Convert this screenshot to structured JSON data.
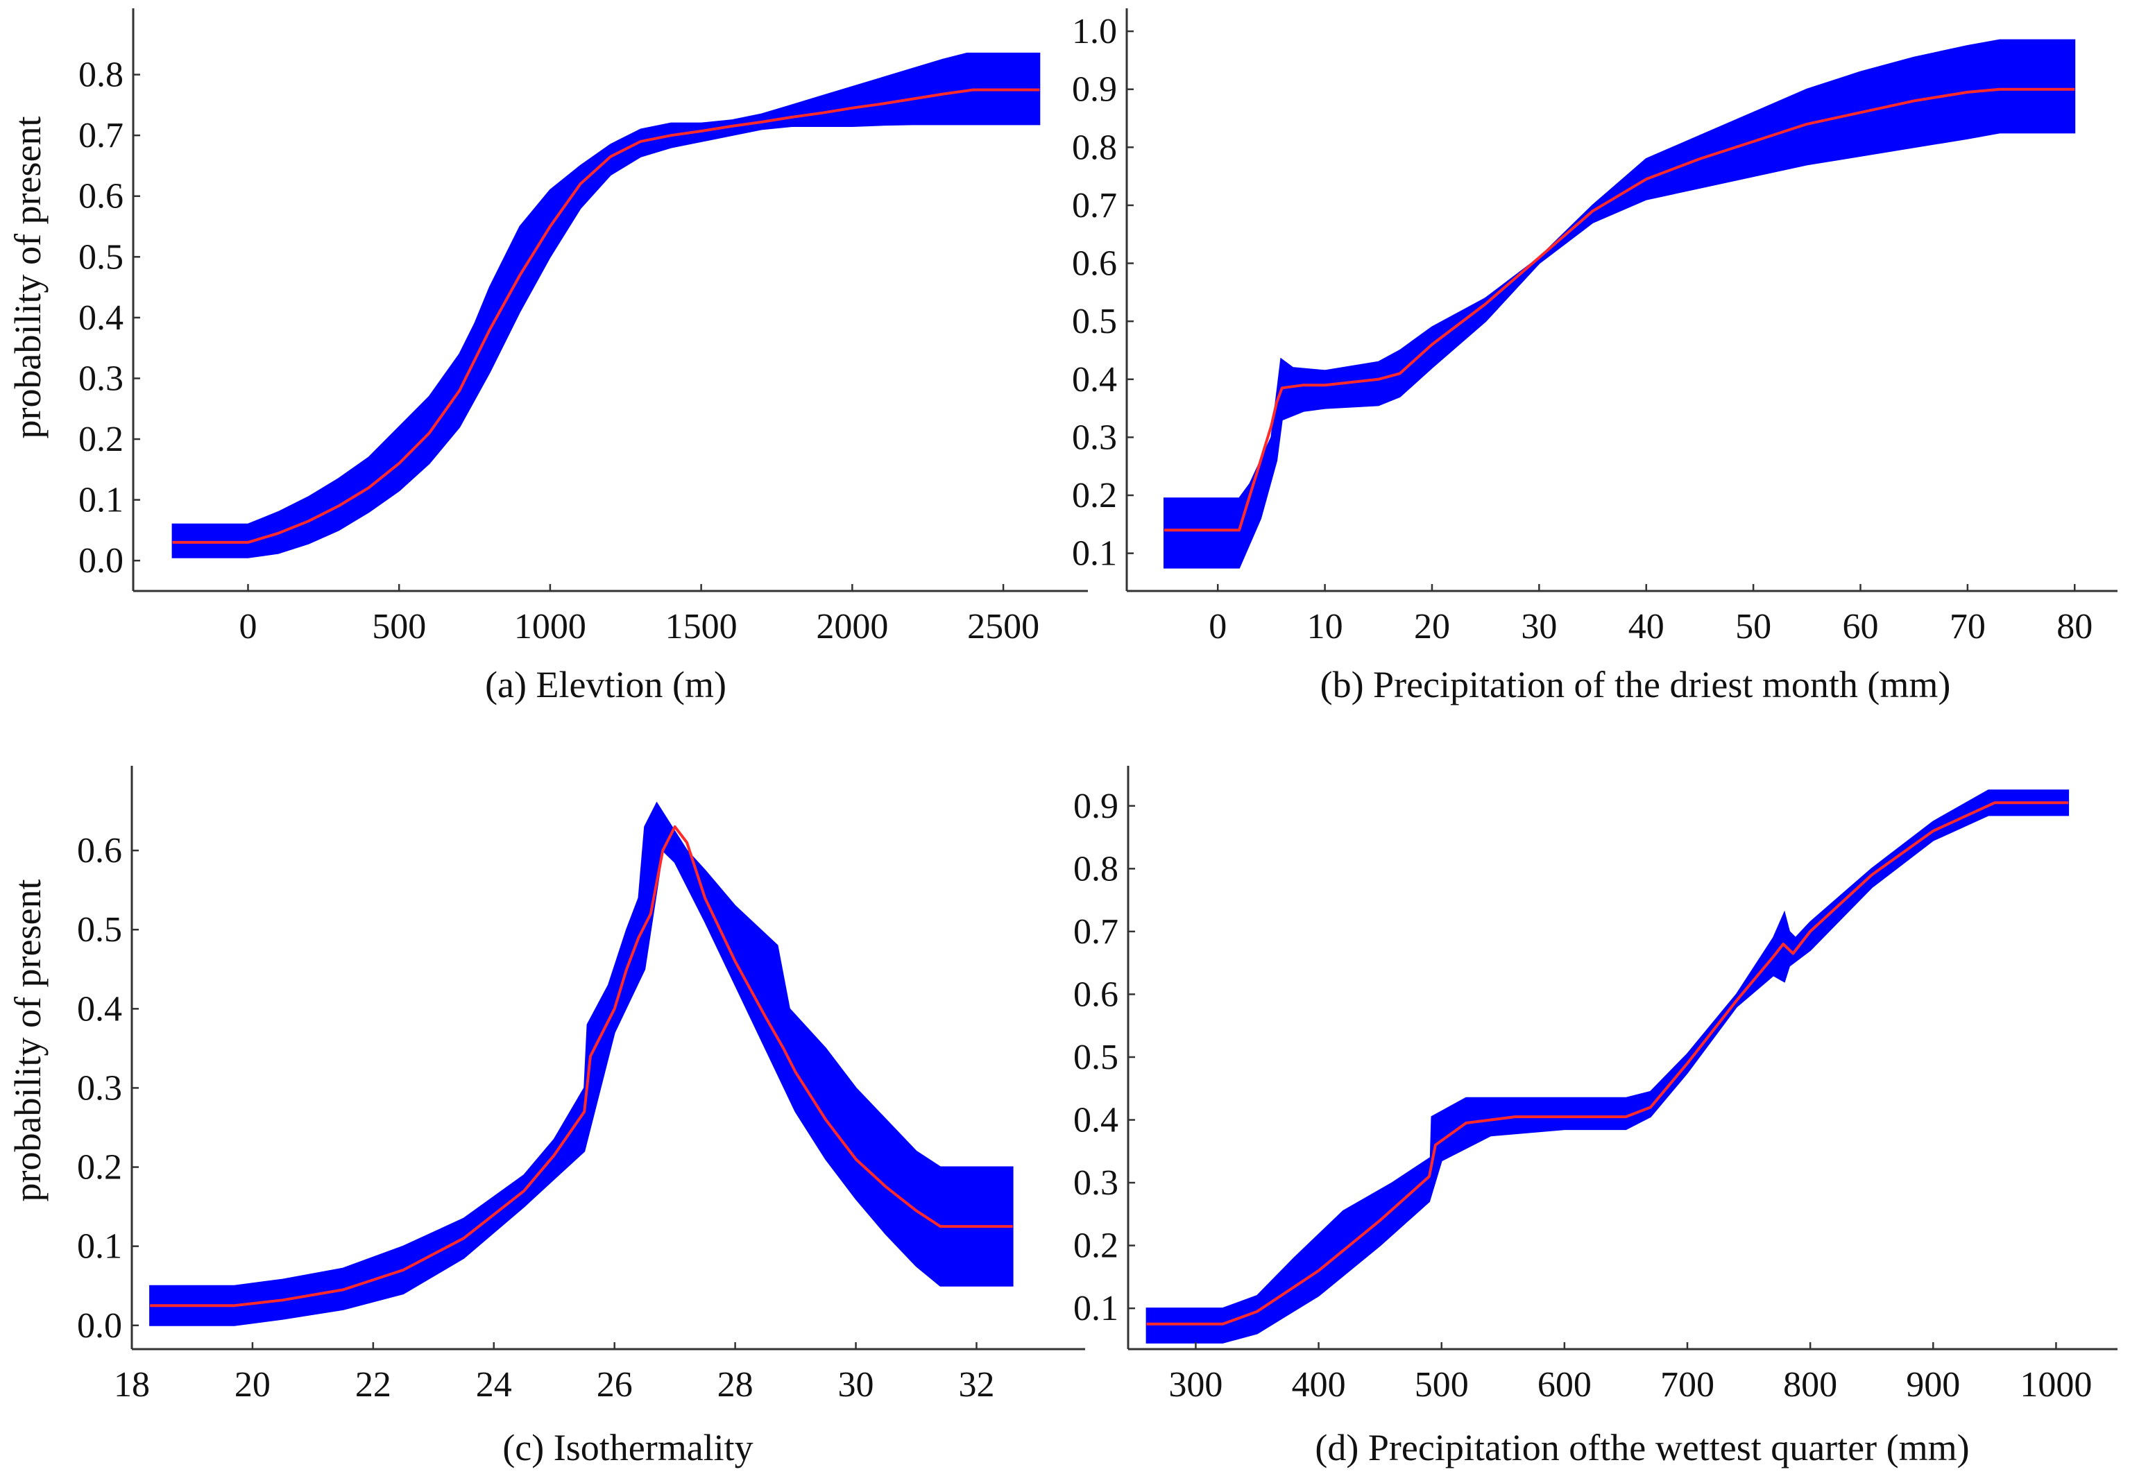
{
  "colors": {
    "band": "#0000ff",
    "line": "#ff2a2a",
    "axis": "#333333",
    "text": "#111111"
  },
  "chart_data": [
    {
      "type": "line",
      "panel": "a",
      "xlabel": "(a) Elevtion (m)",
      "ylabel": "probability of present",
      "xlim": [
        -380,
        2780
      ],
      "ylim": [
        -0.05,
        0.9
      ],
      "xticks": [
        0,
        500,
        1000,
        1500,
        2000,
        2500
      ],
      "yticks": [
        0.0,
        0.1,
        0.2,
        0.3,
        0.4,
        0.5,
        0.6,
        0.7,
        0.8
      ],
      "yfmt": 1,
      "series": [
        {
          "name": "mean response",
          "x": [
            -250,
            -100,
            0,
            100,
            200,
            300,
            400,
            500,
            600,
            700,
            800,
            900,
            1000,
            1100,
            1200,
            1300,
            1400,
            1500,
            1600,
            1700,
            1800,
            1900,
            2000,
            2100,
            2200,
            2300,
            2400,
            2620
          ],
          "y": [
            0.03,
            0.03,
            0.03,
            0.045,
            0.065,
            0.09,
            0.12,
            0.16,
            0.21,
            0.28,
            0.38,
            0.47,
            0.55,
            0.62,
            0.665,
            0.69,
            0.7,
            0.707,
            0.715,
            0.722,
            0.73,
            0.737,
            0.745,
            0.752,
            0.76,
            0.768,
            0.775,
            0.775
          ]
        },
        {
          "name": "band upper",
          "x": [
            -250,
            -100,
            0,
            100,
            200,
            300,
            400,
            500,
            600,
            700,
            750,
            800,
            900,
            1000,
            1100,
            1200,
            1300,
            1400,
            1500,
            1600,
            1700,
            1800,
            1900,
            2000,
            2100,
            2200,
            2300,
            2380,
            2620
          ],
          "y": [
            0.06,
            0.06,
            0.06,
            0.08,
            0.105,
            0.135,
            0.17,
            0.22,
            0.27,
            0.34,
            0.39,
            0.45,
            0.55,
            0.61,
            0.65,
            0.685,
            0.71,
            0.72,
            0.72,
            0.725,
            0.735,
            0.75,
            0.765,
            0.78,
            0.795,
            0.81,
            0.825,
            0.835,
            0.835
          ]
        },
        {
          "name": "band lower",
          "x": [
            -250,
            -100,
            0,
            100,
            200,
            300,
            400,
            500,
            600,
            700,
            800,
            900,
            1000,
            1100,
            1200,
            1300,
            1400,
            1500,
            1600,
            1700,
            1800,
            1900,
            2000,
            2100,
            2200,
            2300,
            2380,
            2620
          ],
          "y": [
            0.005,
            0.005,
            0.005,
            0.012,
            0.028,
            0.05,
            0.08,
            0.115,
            0.16,
            0.22,
            0.31,
            0.41,
            0.5,
            0.58,
            0.635,
            0.665,
            0.68,
            0.69,
            0.7,
            0.71,
            0.715,
            0.715,
            0.715,
            0.717,
            0.718,
            0.718,
            0.718,
            0.718
          ]
        }
      ]
    },
    {
      "type": "line",
      "panel": "b",
      "xlabel": "(b) Precipitation of the driest month (mm)",
      "ylabel": "",
      "xlim": [
        -8.5,
        84
      ],
      "ylim": [
        0.035,
        1.03
      ],
      "xticks": [
        0,
        10,
        20,
        30,
        40,
        50,
        60,
        70,
        80
      ],
      "yticks": [
        0.1,
        0.2,
        0.3,
        0.4,
        0.5,
        0.6,
        0.7,
        0.8,
        0.9,
        1.0
      ],
      "yfmt": 1,
      "series": [
        {
          "name": "mean response",
          "x": [
            -5,
            0,
            2,
            3,
            4,
            5,
            5.5,
            6,
            8,
            10,
            15,
            17,
            20,
            25,
            30,
            35,
            40,
            45,
            50,
            55,
            60,
            65,
            70,
            73,
            80
          ],
          "y": [
            0.14,
            0.14,
            0.14,
            0.2,
            0.26,
            0.32,
            0.36,
            0.385,
            0.39,
            0.39,
            0.4,
            0.41,
            0.46,
            0.53,
            0.61,
            0.69,
            0.745,
            0.78,
            0.81,
            0.84,
            0.86,
            0.88,
            0.895,
            0.9,
            0.9
          ]
        },
        {
          "name": "band upper",
          "x": [
            -5,
            2,
            3,
            5,
            5.6,
            5.9,
            7,
            10,
            15,
            17,
            20,
            25,
            30,
            35,
            40,
            45,
            50,
            55,
            60,
            65,
            70,
            73,
            80
          ],
          "y": [
            0.195,
            0.195,
            0.22,
            0.3,
            0.39,
            0.435,
            0.42,
            0.415,
            0.43,
            0.45,
            0.49,
            0.54,
            0.61,
            0.7,
            0.78,
            0.82,
            0.86,
            0.9,
            0.93,
            0.955,
            0.975,
            0.985,
            0.985
          ]
        },
        {
          "name": "band lower",
          "x": [
            -5,
            2,
            4,
            5.5,
            6,
            8,
            10,
            15,
            17,
            20,
            25,
            30,
            35,
            40,
            45,
            50,
            55,
            60,
            65,
            70,
            73,
            80
          ],
          "y": [
            0.075,
            0.075,
            0.16,
            0.26,
            0.33,
            0.345,
            0.35,
            0.355,
            0.37,
            0.42,
            0.5,
            0.6,
            0.67,
            0.71,
            0.73,
            0.75,
            0.77,
            0.785,
            0.8,
            0.815,
            0.825,
            0.825
          ]
        }
      ]
    },
    {
      "type": "line",
      "panel": "c",
      "xlabel": "(c) Isothermality",
      "ylabel": "probability of present",
      "xlim": [
        18.0,
        33.8
      ],
      "ylim": [
        -0.03,
        0.7
      ],
      "xticks": [
        18,
        20,
        22,
        24,
        26,
        28,
        30,
        32
      ],
      "yticks": [
        0.0,
        0.1,
        0.2,
        0.3,
        0.4,
        0.5,
        0.6
      ],
      "yfmt": 1,
      "series": [
        {
          "name": "mean response",
          "x": [
            18.3,
            19.0,
            19.7,
            20.5,
            21.5,
            22.5,
            23.5,
            24.5,
            25.0,
            25.5,
            25.6,
            26.0,
            26.2,
            26.4,
            26.6,
            26.8,
            27.0,
            27.2,
            27.5,
            28.0,
            28.5,
            28.8,
            29.0,
            29.5,
            30.0,
            30.5,
            31.0,
            31.4,
            32.6
          ],
          "y": [
            0.025,
            0.025,
            0.025,
            0.032,
            0.045,
            0.07,
            0.11,
            0.17,
            0.215,
            0.27,
            0.34,
            0.4,
            0.45,
            0.49,
            0.52,
            0.6,
            0.63,
            0.61,
            0.54,
            0.46,
            0.39,
            0.35,
            0.32,
            0.26,
            0.21,
            0.175,
            0.145,
            0.125,
            0.125
          ]
        },
        {
          "name": "band upper",
          "x": [
            18.3,
            19.7,
            20.5,
            21.5,
            22.5,
            23.5,
            24.5,
            25.0,
            25.5,
            25.55,
            25.9,
            26.2,
            26.4,
            26.5,
            26.7,
            27.2,
            27.5,
            28.0,
            28.7,
            28.9,
            29.5,
            30.0,
            30.5,
            31.0,
            31.4,
            32.6
          ],
          "y": [
            0.05,
            0.05,
            0.058,
            0.072,
            0.1,
            0.135,
            0.19,
            0.235,
            0.3,
            0.38,
            0.43,
            0.5,
            0.54,
            0.63,
            0.66,
            0.6,
            0.575,
            0.53,
            0.48,
            0.4,
            0.35,
            0.3,
            0.26,
            0.22,
            0.2,
            0.2
          ]
        },
        {
          "name": "band lower",
          "x": [
            18.3,
            19.7,
            20.5,
            21.5,
            22.5,
            23.5,
            24.5,
            25.0,
            25.5,
            26.0,
            26.5,
            26.8,
            27.0,
            27.5,
            28.0,
            28.5,
            29.0,
            29.5,
            30.0,
            30.5,
            31.0,
            31.4,
            32.6
          ],
          "y": [
            0.0,
            0.0,
            0.008,
            0.02,
            0.04,
            0.085,
            0.15,
            0.185,
            0.22,
            0.37,
            0.45,
            0.6,
            0.585,
            0.51,
            0.43,
            0.35,
            0.27,
            0.21,
            0.16,
            0.115,
            0.075,
            0.05,
            0.05
          ]
        }
      ]
    },
    {
      "type": "line",
      "panel": "d",
      "xlabel": "(d) Precipitation ofthe wettest quarter (mm)",
      "ylabel": "",
      "xlim": [
        245,
        1050
      ],
      "ylim": [
        0.035,
        0.955
      ],
      "xticks": [
        300,
        400,
        500,
        600,
        700,
        800,
        900,
        1000
      ],
      "yticks": [
        0.1,
        0.2,
        0.3,
        0.4,
        0.5,
        0.6,
        0.7,
        0.8,
        0.9
      ],
      "yfmt": 1,
      "series": [
        {
          "name": "mean response",
          "x": [
            260,
            290,
            322,
            350,
            400,
            450,
            490,
            495,
            520,
            560,
            600,
            650,
            670,
            700,
            740,
            770,
            778,
            786,
            800,
            850,
            900,
            950,
            1010
          ],
          "y": [
            0.075,
            0.075,
            0.075,
            0.095,
            0.16,
            0.24,
            0.31,
            0.36,
            0.395,
            0.405,
            0.405,
            0.405,
            0.42,
            0.49,
            0.59,
            0.66,
            0.68,
            0.665,
            0.7,
            0.79,
            0.86,
            0.905,
            0.905
          ]
        },
        {
          "name": "band upper",
          "x": [
            260,
            322,
            350,
            380,
            420,
            460,
            491,
            492,
            520,
            560,
            600,
            650,
            670,
            700,
            740,
            770,
            779,
            783,
            788,
            800,
            850,
            900,
            945,
            1010
          ],
          "y": [
            0.1,
            0.1,
            0.12,
            0.18,
            0.255,
            0.3,
            0.34,
            0.405,
            0.435,
            0.435,
            0.435,
            0.435,
            0.445,
            0.505,
            0.6,
            0.69,
            0.73,
            0.7,
            0.69,
            0.715,
            0.8,
            0.875,
            0.925,
            0.925
          ]
        },
        {
          "name": "band lower",
          "x": [
            260,
            322,
            350,
            400,
            450,
            490,
            500,
            540,
            600,
            650,
            670,
            700,
            740,
            770,
            779,
            783,
            800,
            850,
            900,
            945,
            1010
          ],
          "y": [
            0.045,
            0.045,
            0.06,
            0.12,
            0.2,
            0.27,
            0.335,
            0.375,
            0.385,
            0.385,
            0.405,
            0.475,
            0.58,
            0.63,
            0.62,
            0.645,
            0.67,
            0.77,
            0.845,
            0.885,
            0.885
          ]
        }
      ]
    }
  ]
}
